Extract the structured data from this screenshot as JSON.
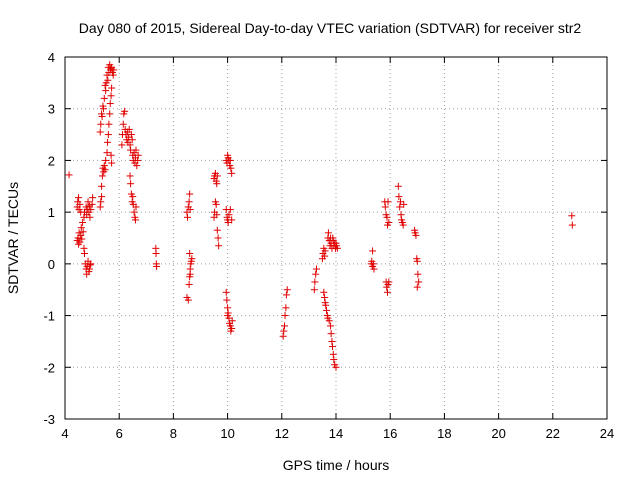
{
  "chart_data": {
    "type": "scatter",
    "title": "Day 080 of 2015, Sidereal Day-to-day VTEC variation (SDTVAR) for receiver str2",
    "xlabel": "GPS time / hours",
    "ylabel": "SDTVAR / TECUs",
    "xlim": [
      4,
      24
    ],
    "ylim": [
      -3,
      4
    ],
    "xticks": [
      4,
      6,
      8,
      10,
      12,
      14,
      16,
      18,
      20,
      22,
      24
    ],
    "yticks": [
      -3,
      -2,
      -1,
      0,
      1,
      2,
      3,
      4
    ],
    "x_tick_labels": [
      "4",
      "6",
      "8",
      "10",
      "12",
      "14",
      "16",
      "18",
      "20",
      "22",
      "24"
    ],
    "y_tick_labels": [
      "-3",
      "-2",
      "-1",
      "0",
      "1",
      "2",
      "3",
      "4"
    ],
    "grid": true,
    "marker": "+",
    "color": "#e00000",
    "series": [
      {
        "name": "SDTVAR",
        "points": [
          [
            4.15,
            1.72
          ],
          [
            4.45,
            1.1
          ],
          [
            4.47,
            1.2
          ],
          [
            4.5,
            1.28
          ],
          [
            4.52,
            1.05
          ],
          [
            4.55,
            1.15
          ],
          [
            4.58,
            1.0
          ],
          [
            4.45,
            0.45
          ],
          [
            4.48,
            0.5
          ],
          [
            4.5,
            0.38
          ],
          [
            4.52,
            0.6
          ],
          [
            4.55,
            0.42
          ],
          [
            4.58,
            0.55
          ],
          [
            4.6,
            0.7
          ],
          [
            4.62,
            0.48
          ],
          [
            4.65,
            0.8
          ],
          [
            4.67,
            0.62
          ],
          [
            4.7,
            0.9
          ],
          [
            4.72,
            1.0
          ],
          [
            4.7,
            0.3
          ],
          [
            4.72,
            0.2
          ],
          [
            4.75,
            0.0
          ],
          [
            4.78,
            -0.1
          ],
          [
            4.8,
            -0.2
          ],
          [
            4.82,
            -0.05
          ],
          [
            4.85,
            0.05
          ],
          [
            4.88,
            -0.15
          ],
          [
            4.9,
            -0.1
          ],
          [
            4.93,
            -0.02
          ],
          [
            4.95,
            0.0
          ],
          [
            4.78,
            1.1
          ],
          [
            4.8,
            0.95
          ],
          [
            4.82,
            1.05
          ],
          [
            4.85,
            1.2
          ],
          [
            4.88,
            1.0
          ],
          [
            4.9,
            1.12
          ],
          [
            4.92,
            0.9
          ],
          [
            4.95,
            1.05
          ],
          [
            5.0,
            1.15
          ],
          [
            5.02,
            1.28
          ],
          [
            5.3,
            1.1
          ],
          [
            5.32,
            1.2
          ],
          [
            5.35,
            1.3
          ],
          [
            5.35,
            1.5
          ],
          [
            5.38,
            1.7
          ],
          [
            5.4,
            1.85
          ],
          [
            5.43,
            1.78
          ],
          [
            5.45,
            1.9
          ],
          [
            5.48,
            1.82
          ],
          [
            5.5,
            2.0
          ],
          [
            5.3,
            2.55
          ],
          [
            5.32,
            2.7
          ],
          [
            5.35,
            2.9
          ],
          [
            5.37,
            2.85
          ],
          [
            5.4,
            3.05
          ],
          [
            5.42,
            3.0
          ],
          [
            5.45,
            3.2
          ],
          [
            5.48,
            3.45
          ],
          [
            5.5,
            3.35
          ],
          [
            5.52,
            3.5
          ],
          [
            5.55,
            3.65
          ],
          [
            5.58,
            3.55
          ],
          [
            5.6,
            3.8
          ],
          [
            5.62,
            3.7
          ],
          [
            5.65,
            3.85
          ],
          [
            5.68,
            3.75
          ],
          [
            5.7,
            3.78
          ],
          [
            5.72,
            3.8
          ],
          [
            5.75,
            3.7
          ],
          [
            5.78,
            3.65
          ],
          [
            5.8,
            3.75
          ],
          [
            5.55,
            2.15
          ],
          [
            5.57,
            2.35
          ],
          [
            5.6,
            2.5
          ],
          [
            5.62,
            2.7
          ],
          [
            5.65,
            2.9
          ],
          [
            5.67,
            3.1
          ],
          [
            5.7,
            3.25
          ],
          [
            5.72,
            3.4
          ],
          [
            5.7,
            2.1
          ],
          [
            5.72,
            1.95
          ],
          [
            6.1,
            2.3
          ],
          [
            6.12,
            2.5
          ],
          [
            6.15,
            2.7
          ],
          [
            6.17,
            2.9
          ],
          [
            6.2,
            2.95
          ],
          [
            6.22,
            2.6
          ],
          [
            6.25,
            2.5
          ],
          [
            6.28,
            2.4
          ],
          [
            6.3,
            2.55
          ],
          [
            6.32,
            2.35
          ],
          [
            6.35,
            2.45
          ],
          [
            6.37,
            2.6
          ],
          [
            6.4,
            2.3
          ],
          [
            6.42,
            2.2
          ],
          [
            6.45,
            2.5
          ],
          [
            6.48,
            2.4
          ],
          [
            6.5,
            2.1
          ],
          [
            6.52,
            2.0
          ],
          [
            6.55,
            2.15
          ],
          [
            6.58,
            1.95
          ],
          [
            6.6,
            2.05
          ],
          [
            6.62,
            2.2
          ],
          [
            6.65,
            1.9
          ],
          [
            6.68,
            2.0
          ],
          [
            6.7,
            2.1
          ],
          [
            6.4,
            1.7
          ],
          [
            6.42,
            1.55
          ],
          [
            6.45,
            1.35
          ],
          [
            6.48,
            1.2
          ],
          [
            6.5,
            1.3
          ],
          [
            6.52,
            1.15
          ],
          [
            6.55,
            1.0
          ],
          [
            6.58,
            0.9
          ],
          [
            6.6,
            0.85
          ],
          [
            6.62,
            1.1
          ],
          [
            7.35,
            0.3
          ],
          [
            7.36,
            0.2
          ],
          [
            7.37,
            0.0
          ],
          [
            7.38,
            -0.05
          ],
          [
            8.5,
            1.0
          ],
          [
            8.52,
            0.9
          ],
          [
            8.55,
            1.1
          ],
          [
            8.58,
            1.2
          ],
          [
            8.6,
            1.35
          ],
          [
            8.62,
            1.05
          ],
          [
            8.5,
            -0.65
          ],
          [
            8.55,
            -0.7
          ],
          [
            8.58,
            -0.4
          ],
          [
            8.6,
            -0.25
          ],
          [
            8.62,
            -0.1
          ],
          [
            8.64,
            0.0
          ],
          [
            8.66,
            0.05
          ],
          [
            8.68,
            0.1
          ],
          [
            8.6,
            0.2
          ],
          [
            8.62,
            -0.2
          ],
          [
            9.5,
            1.65
          ],
          [
            9.52,
            1.7
          ],
          [
            9.55,
            1.75
          ],
          [
            9.58,
            1.6
          ],
          [
            9.6,
            1.55
          ],
          [
            9.62,
            1.7
          ],
          [
            9.5,
            0.9
          ],
          [
            9.52,
            1.0
          ],
          [
            9.55,
            1.2
          ],
          [
            9.58,
            1.15
          ],
          [
            9.6,
            0.95
          ],
          [
            9.62,
            0.65
          ],
          [
            9.65,
            0.5
          ],
          [
            9.67,
            0.35
          ],
          [
            9.95,
            2.0
          ],
          [
            9.98,
            1.95
          ],
          [
            10.0,
            2.1
          ],
          [
            10.02,
            2.05
          ],
          [
            10.05,
            2.0
          ],
          [
            10.08,
            1.9
          ],
          [
            10.1,
            2.0
          ],
          [
            10.12,
            1.85
          ],
          [
            10.15,
            1.75
          ],
          [
            9.95,
            1.05
          ],
          [
            9.98,
            0.9
          ],
          [
            10.0,
            0.85
          ],
          [
            10.02,
            0.8
          ],
          [
            10.05,
            0.95
          ],
          [
            10.1,
            1.05
          ],
          [
            10.15,
            0.85
          ],
          [
            9.95,
            -0.55
          ],
          [
            9.97,
            -0.7
          ],
          [
            10.0,
            -0.85
          ],
          [
            10.02,
            -0.95
          ],
          [
            10.05,
            -1.05
          ],
          [
            10.07,
            -1.15
          ],
          [
            10.1,
            -1.2
          ],
          [
            10.12,
            -1.3
          ],
          [
            10.15,
            -1.25
          ],
          [
            10.17,
            -1.1
          ],
          [
            10.0,
            -1.0
          ],
          [
            12.05,
            -1.4
          ],
          [
            12.07,
            -1.3
          ],
          [
            12.1,
            -1.2
          ],
          [
            12.12,
            -1.0
          ],
          [
            12.15,
            -0.85
          ],
          [
            12.17,
            -0.6
          ],
          [
            12.2,
            -0.5
          ],
          [
            13.2,
            -0.5
          ],
          [
            13.22,
            -0.35
          ],
          [
            13.25,
            -0.2
          ],
          [
            13.28,
            -0.1
          ],
          [
            13.5,
            0.1
          ],
          [
            13.52,
            0.2
          ],
          [
            13.55,
            0.3
          ],
          [
            13.58,
            0.15
          ],
          [
            13.6,
            0.25
          ],
          [
            13.55,
            -0.55
          ],
          [
            13.58,
            -0.65
          ],
          [
            13.6,
            -0.75
          ],
          [
            13.62,
            -0.8
          ],
          [
            13.65,
            -0.9
          ],
          [
            13.68,
            -1.0
          ],
          [
            13.7,
            -1.05
          ],
          [
            13.75,
            -1.1
          ],
          [
            13.8,
            -1.2
          ],
          [
            13.82,
            -1.35
          ],
          [
            13.85,
            -1.5
          ],
          [
            13.87,
            -1.6
          ],
          [
            13.9,
            -1.75
          ],
          [
            13.92,
            -1.85
          ],
          [
            13.95,
            -1.95
          ],
          [
            14.0,
            -2.0
          ],
          [
            13.7,
            0.5
          ],
          [
            13.72,
            0.6
          ],
          [
            13.75,
            0.45
          ],
          [
            13.78,
            0.35
          ],
          [
            13.8,
            0.5
          ],
          [
            13.82,
            0.4
          ],
          [
            13.85,
            0.3
          ],
          [
            13.88,
            0.5
          ],
          [
            13.9,
            0.45
          ],
          [
            13.92,
            0.35
          ],
          [
            13.95,
            0.4
          ],
          [
            13.98,
            0.3
          ],
          [
            14.0,
            0.4
          ],
          [
            14.02,
            0.35
          ],
          [
            14.05,
            0.3
          ],
          [
            15.3,
            0.0
          ],
          [
            15.32,
            0.05
          ],
          [
            15.35,
            -0.05
          ],
          [
            15.38,
            0.0
          ],
          [
            15.4,
            -0.1
          ],
          [
            15.35,
            0.25
          ],
          [
            15.8,
            1.2
          ],
          [
            15.82,
            1.1
          ],
          [
            15.85,
            0.95
          ],
          [
            15.88,
            0.9
          ],
          [
            15.9,
            0.75
          ],
          [
            15.92,
            1.2
          ],
          [
            15.95,
            0.8
          ],
          [
            15.85,
            -0.35
          ],
          [
            15.87,
            -0.45
          ],
          [
            15.9,
            -0.55
          ],
          [
            15.92,
            -0.4
          ],
          [
            15.95,
            -0.35
          ],
          [
            16.3,
            1.5
          ],
          [
            16.32,
            1.3
          ],
          [
            16.35,
            1.1
          ],
          [
            16.38,
            1.2
          ],
          [
            16.4,
            0.95
          ],
          [
            16.42,
            0.85
          ],
          [
            16.45,
            0.8
          ],
          [
            16.48,
            0.75
          ],
          [
            16.5,
            1.15
          ],
          [
            16.9,
            0.65
          ],
          [
            16.92,
            0.6
          ],
          [
            16.95,
            0.55
          ],
          [
            16.98,
            0.1
          ],
          [
            17.0,
            0.05
          ],
          [
            17.02,
            -0.2
          ],
          [
            17.05,
            -0.35
          ],
          [
            17.0,
            -0.45
          ],
          [
            22.7,
            0.93
          ],
          [
            22.72,
            0.75
          ]
        ]
      }
    ]
  }
}
